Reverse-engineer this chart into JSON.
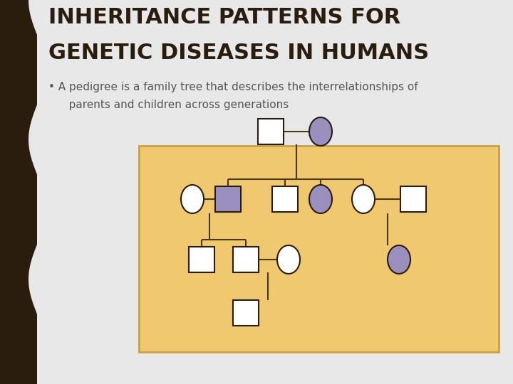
{
  "bg_color": "#e8e8e8",
  "left_bar_color": "#2b1d0e",
  "title_line1": "INHERITANCE PATTERNS FOR",
  "title_line2": "GENETIC DISEASES IN HUMANS",
  "title_color": "#2b1d0e",
  "bullet_line1": "• A pedigree is a family tree that describes the interrelationships of",
  "bullet_line2": "   parents and children across generations",
  "bullet_color": "#555555",
  "pedigree_bg": "#f0c870",
  "pedigree_border": "#c8a045",
  "line_color": "#4a3a10",
  "line_width": 1.5,
  "unaffected_fill": "#ffffff",
  "affected_fill": "#9b8fc0",
  "outline_color": "#2b1d0e",
  "title_fontsize": 22,
  "bullet_fontsize": 11
}
